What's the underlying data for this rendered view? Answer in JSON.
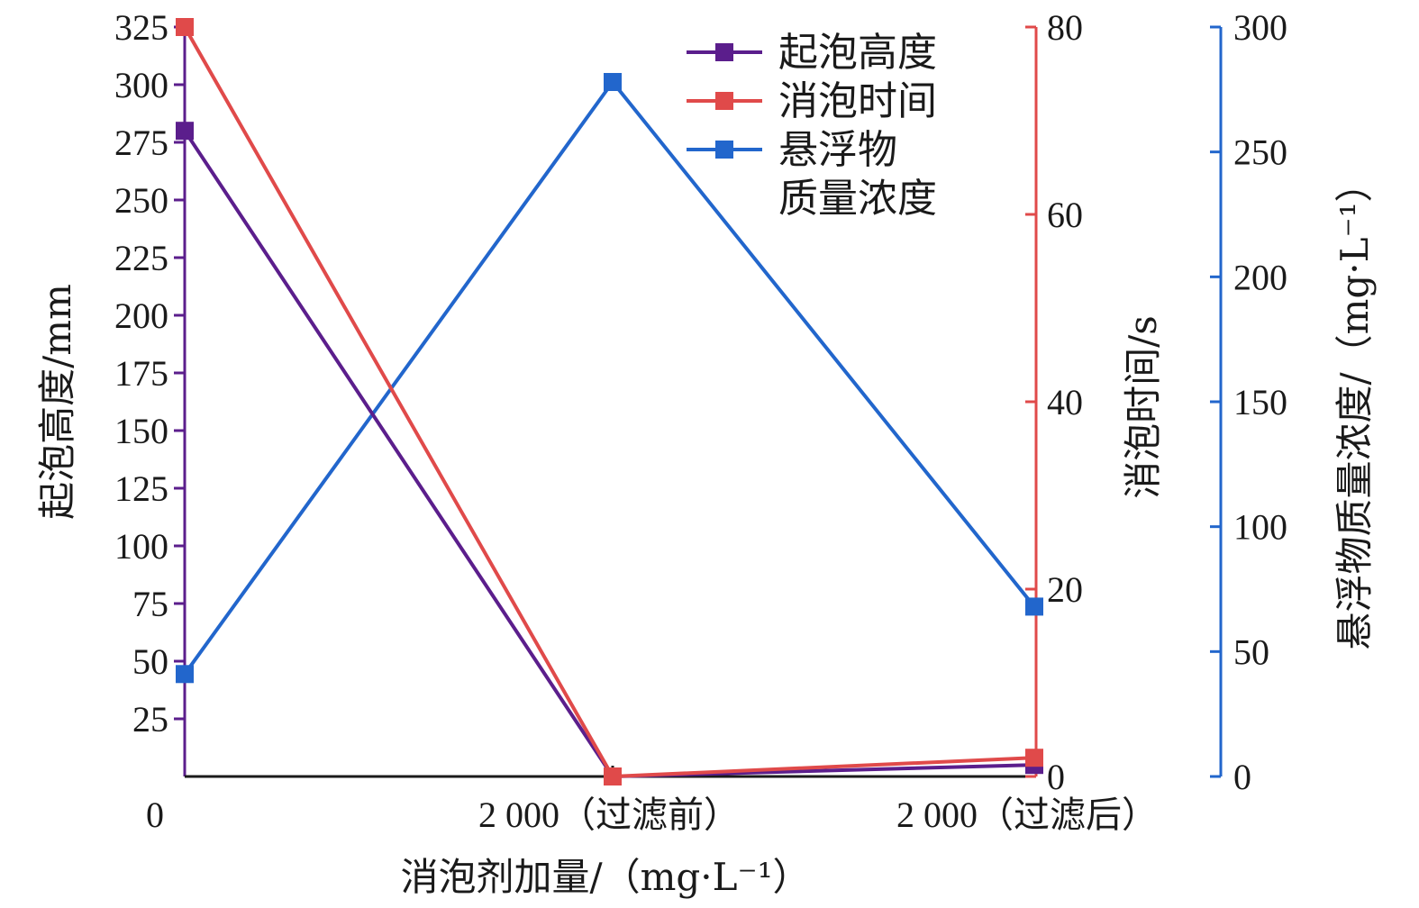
{
  "chart_data": {
    "type": "line",
    "categories": [
      "0",
      "2 000（过滤前）",
      "2 000（过滤后）"
    ],
    "xlabel": "消泡剂加量/（mg·L⁻¹）",
    "y_axes": {
      "left": {
        "label": "起泡高度/mm",
        "range": [
          0,
          325
        ],
        "ticks": [
          25,
          50,
          75,
          100,
          125,
          150,
          175,
          200,
          225,
          250,
          275,
          300,
          325
        ],
        "color": "#5b1e8c"
      },
      "right1": {
        "label": "消泡时间/s",
        "range": [
          0,
          80
        ],
        "ticks": [
          0,
          20,
          40,
          60,
          80
        ],
        "color": "#e04a4a"
      },
      "right2": {
        "label": "悬浮物质量浓度/（mg·L⁻¹）",
        "range": [
          0,
          300
        ],
        "ticks": [
          0,
          50,
          100,
          150,
          200,
          250,
          300
        ],
        "color": "#2266cc"
      }
    },
    "series": [
      {
        "name": "起泡高度",
        "axis": "left",
        "values": [
          280,
          0,
          5
        ],
        "color": "#5b1e8c"
      },
      {
        "name": "消泡时间",
        "axis": "right1",
        "values": [
          80,
          0,
          2
        ],
        "color": "#e04a4a"
      },
      {
        "name": "悬浮物\n质量浓度",
        "axis": "right2",
        "values": [
          41,
          278,
          68
        ],
        "color": "#2266cc"
      }
    ],
    "legend_position": "top-right",
    "grid": false
  }
}
